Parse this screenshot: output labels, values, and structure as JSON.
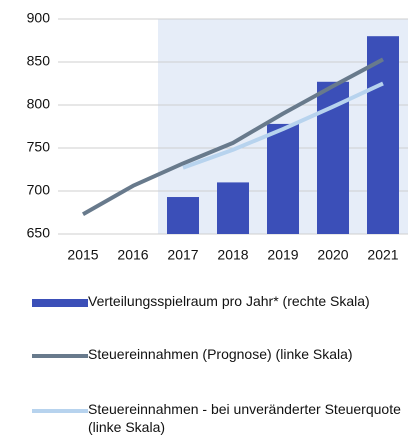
{
  "chart_data": {
    "type": "bar-line",
    "categories": [
      "2015",
      "2016",
      "2017",
      "2018",
      "2019",
      "2020",
      "2021"
    ],
    "series": [
      {
        "name": "Verteilungsspielraum pro Jahr* (rechte Skala)",
        "type": "bar",
        "color": "#3b4fb8",
        "values": [
          null,
          null,
          693,
          710,
          778,
          827,
          880
        ]
      },
      {
        "name": "Steuereinnahmen (Prognose) (linke Skala)",
        "type": "line",
        "color": "#687a8c",
        "values": [
          673,
          706,
          732,
          756,
          790,
          822,
          853
        ]
      },
      {
        "name": "Steuereinnahmen - bei unveränderter Steuerquote (linke Skala)",
        "type": "line",
        "color": "#b7d3ee",
        "values": [
          null,
          null,
          727,
          748,
          772,
          798,
          825
        ]
      }
    ],
    "ylim": [
      650,
      900
    ],
    "yticks": [
      650,
      700,
      750,
      800,
      850,
      900
    ],
    "grid": true
  }
}
